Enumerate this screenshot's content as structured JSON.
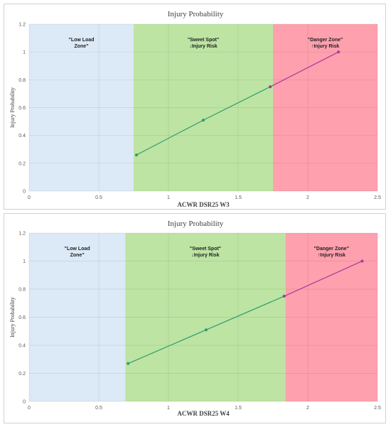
{
  "chart_data": [
    {
      "type": "line",
      "title": "Injury Probability",
      "xlabel": "ACWR DSR25 W3",
      "ylabel": "Injury Probability",
      "xlim": [
        0,
        2.5
      ],
      "ylim": [
        0,
        1.2
      ],
      "xticks": [
        "0",
        "0.5",
        "1",
        "1.5",
        "2",
        "2.5"
      ],
      "yticks": [
        "0",
        "0.2",
        "0.4",
        "0.6",
        "0.8",
        "1",
        "1.2"
      ],
      "grid": true,
      "zones": [
        {
          "lines": [
            "\"Low Load",
            "Zone\""
          ],
          "from": 0,
          "to": 0.75,
          "color": "#dce9f6"
        },
        {
          "lines": [
            "\"Sweet Spot\"",
            "↓Injury Risk"
          ],
          "from": 0.75,
          "to": 1.75,
          "color": "#bde4a3"
        },
        {
          "lines": [
            "\"Danger Zone\"",
            "↑Injury Risk"
          ],
          "from": 1.75,
          "to": 2.5,
          "color": "#ffa0ae"
        }
      ],
      "series": [
        {
          "x": [
            0.77,
            1.25,
            1.73
          ],
          "y": [
            0.26,
            0.51,
            0.75
          ],
          "color": "#2e9c6e"
        },
        {
          "x": [
            1.73,
            2.22
          ],
          "y": [
            0.75,
            1.0
          ],
          "color": "#b0379c"
        }
      ]
    },
    {
      "type": "line",
      "title": "Injury Probability",
      "xlabel": "ACWR DSR25 W4",
      "ylabel": "Injury Probability",
      "xlim": [
        0,
        2.5
      ],
      "ylim": [
        0,
        1.2
      ],
      "xticks": [
        "0",
        "0.5",
        "1",
        "1.5",
        "2",
        "2.5"
      ],
      "yticks": [
        "0",
        "0.2",
        "0.4",
        "0.6",
        "0.8",
        "1",
        "1.2"
      ],
      "grid": true,
      "zones": [
        {
          "lines": [
            "\"Low Load",
            "Zone\""
          ],
          "from": 0,
          "to": 0.69,
          "color": "#dce9f6"
        },
        {
          "lines": [
            "\"Sweet Spot\"",
            "↓Injury Risk"
          ],
          "from": 0.69,
          "to": 1.84,
          "color": "#bde4a3"
        },
        {
          "lines": [
            "\"Danger Zone\"",
            "↑Injury Risk"
          ],
          "from": 1.84,
          "to": 2.5,
          "color": "#ffa0ae"
        }
      ],
      "series": [
        {
          "x": [
            0.71,
            1.27,
            1.83
          ],
          "y": [
            0.27,
            0.51,
            0.75
          ],
          "color": "#2e9c6e"
        },
        {
          "x": [
            1.83,
            2.39
          ],
          "y": [
            0.75,
            1.0
          ],
          "color": "#b0379c"
        }
      ]
    }
  ]
}
